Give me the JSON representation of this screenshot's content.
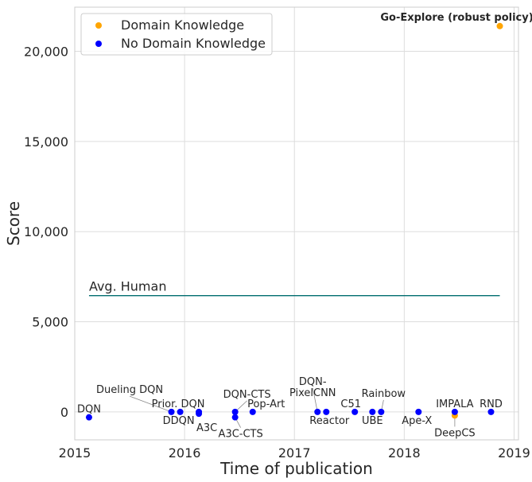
{
  "chart_data": {
    "type": "scatter",
    "xlabel": "Time of publication",
    "ylabel": "Score",
    "xlim": [
      2015.0,
      2019.04
    ],
    "ylim": [
      -1550,
      22450
    ],
    "x_ticks": [
      2015,
      2016,
      2017,
      2018,
      2019
    ],
    "x_tick_labels": [
      "2015",
      "2016",
      "2017",
      "2018",
      "2019"
    ],
    "y_ticks": [
      0,
      5000,
      10000,
      15000,
      20000
    ],
    "y_tick_labels": [
      "0",
      "5,000",
      "10,000",
      "15,000",
      "20,000"
    ],
    "grid": true,
    "legend_position": "top-left",
    "series": [
      {
        "name": "Domain Knowledge",
        "color": "#ffa500",
        "points": [
          {
            "label": "DeepCS",
            "x": 2018.46,
            "y": -200
          },
          {
            "label": "Go-Explore (robust policy)",
            "x": 2018.87,
            "y": 21400
          }
        ]
      },
      {
        "name": "No Domain Knowledge",
        "color": "#0000ff",
        "points": [
          {
            "label": "DQN",
            "x": 2015.13,
            "y": -300
          },
          {
            "label": "Dueling DQN",
            "x": 2015.88,
            "y": 0
          },
          {
            "label": "DDQN",
            "x": 2015.96,
            "y": 0
          },
          {
            "label": "Prior. DQN",
            "x": 2016.13,
            "y": 0
          },
          {
            "label": "A3C",
            "x": 2016.13,
            "y": -100
          },
          {
            "label": "DQN-CTS",
            "x": 2016.46,
            "y": 0
          },
          {
            "label": "A3C-CTS",
            "x": 2016.46,
            "y": -300
          },
          {
            "label": "Pop-Art",
            "x": 2016.62,
            "y": 0
          },
          {
            "label": "DQN-PixelCNN",
            "x": 2017.21,
            "y": 0
          },
          {
            "label": "Reactor",
            "x": 2017.29,
            "y": 0
          },
          {
            "label": "C51",
            "x": 2017.55,
            "y": 0
          },
          {
            "label": "UBE",
            "x": 2017.71,
            "y": 0
          },
          {
            "label": "Rainbow",
            "x": 2017.79,
            "y": 0
          },
          {
            "label": "Ape-X",
            "x": 2018.13,
            "y": 0
          },
          {
            "label": "IMPALA",
            "x": 2018.46,
            "y": 0
          },
          {
            "label": "RND",
            "x": 2018.79,
            "y": 0
          }
        ]
      }
    ],
    "reference_line": {
      "label": "Avg. Human",
      "y": 6450,
      "x_start": 2015.13,
      "x_end": 2018.87,
      "color": "#006d6f"
    }
  }
}
